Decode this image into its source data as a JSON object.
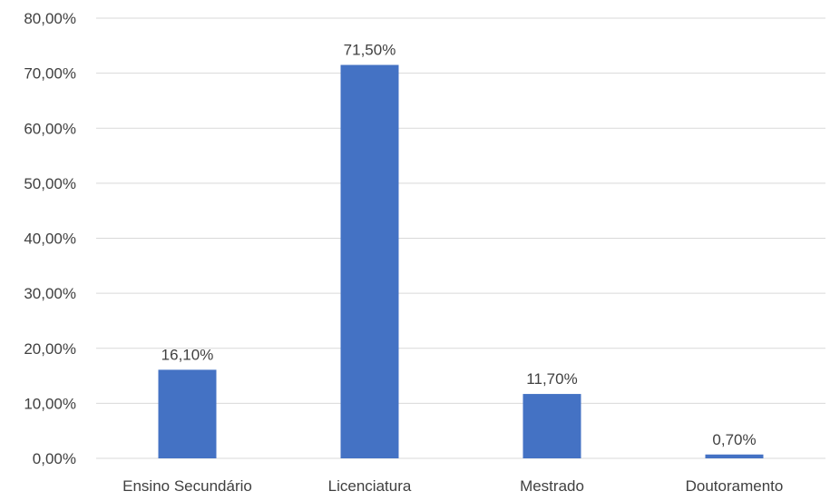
{
  "chart_data": {
    "type": "bar",
    "categories": [
      "Ensino Secundário",
      "Licenciatura",
      "Mestrado",
      "Doutoramento"
    ],
    "values": [
      16.1,
      71.5,
      11.7,
      0.7
    ],
    "data_labels": [
      "16,10%",
      "71,50%",
      "11,70%",
      "0,70%"
    ],
    "y_ticks": [
      "0,00%",
      "10,00%",
      "20,00%",
      "30,00%",
      "40,00%",
      "50,00%",
      "60,00%",
      "70,00%",
      "80,00%"
    ],
    "ylim": [
      0,
      80
    ],
    "title": "",
    "xlabel": "",
    "ylabel": "",
    "grid": true,
    "bar_color": "#4472C4"
  }
}
